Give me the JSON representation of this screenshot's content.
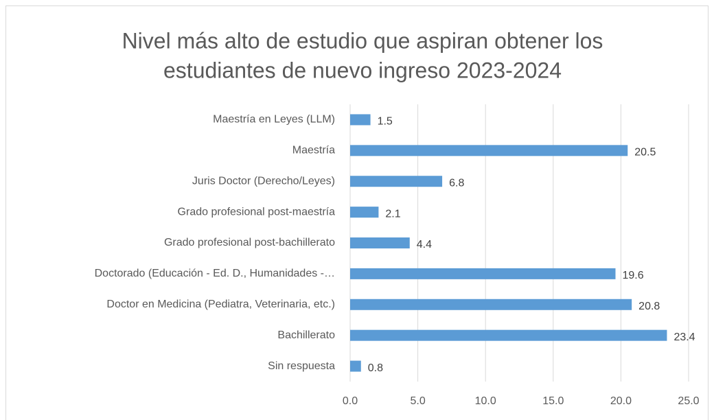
{
  "chart_data": {
    "type": "bar",
    "orientation": "horizontal",
    "title": [
      "Nivel más alto de estudio que aspiran obtener los",
      "estudiantes de nuevo ingreso 2023-2024"
    ],
    "categories": [
      "Maestría en Leyes (LLM)",
      "Maestría",
      "Juris Doctor (Derecho/Leyes)",
      "Grado profesional post-maestría",
      "Grado profesional post-bachillerato",
      "Doctorado (Educación - Ed. D., Humanidades -…",
      "Doctor en Medicina (Pediatra, Veterinaria, etc.)",
      "Bachillerato",
      "Sin respuesta"
    ],
    "values": [
      1.5,
      20.5,
      6.8,
      2.1,
      4.4,
      19.6,
      20.8,
      23.4,
      0.8
    ],
    "color": "#5b9bd5",
    "xlim": [
      0,
      25
    ],
    "xticks": [
      {
        "value": 0,
        "label": "0.0"
      },
      {
        "value": 5,
        "label": "5.0"
      },
      {
        "value": 10,
        "label": "10.0"
      },
      {
        "value": 15,
        "label": "15.0"
      },
      {
        "value": 20,
        "label": "20.0"
      },
      {
        "value": 25,
        "label": "25.0"
      }
    ],
    "grid": true
  }
}
